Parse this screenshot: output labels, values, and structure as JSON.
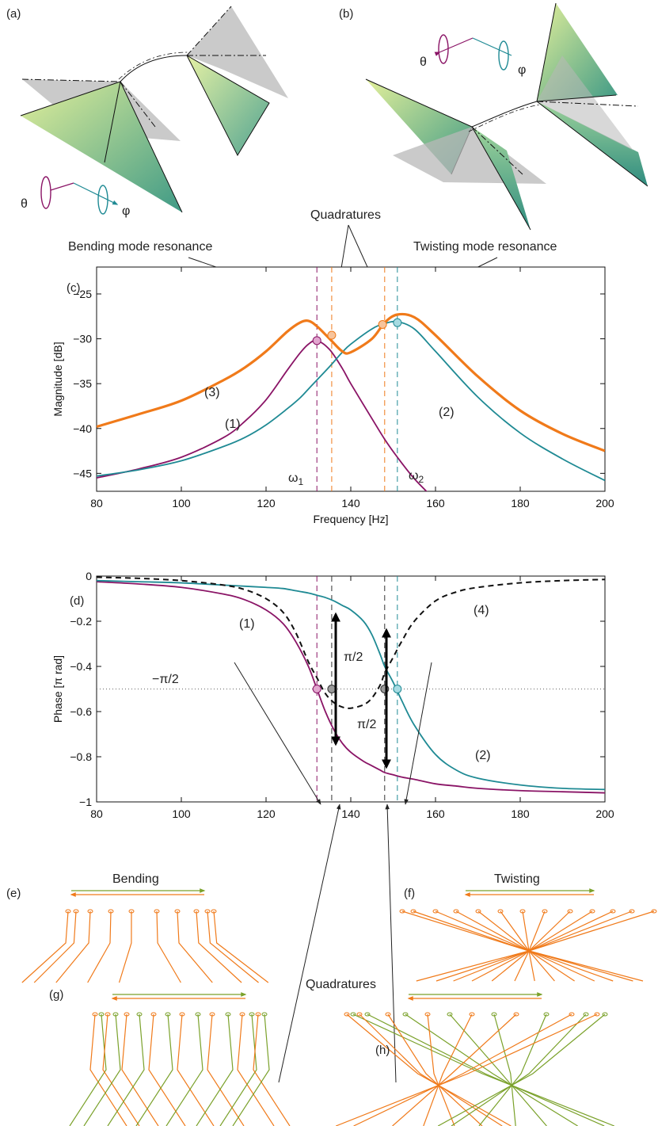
{
  "panel_labels": {
    "a": "(a)",
    "b": "(b)",
    "c": "(c)",
    "d": "(d)",
    "e": "(e)",
    "f": "(f)",
    "g": "(g)",
    "h": "(h)"
  },
  "symbols": {
    "theta": "θ",
    "phi": "φ"
  },
  "annotations": {
    "quadratures_top": "Quadratures",
    "bending_resonance": "Bending mode resonance",
    "twisting_resonance": "Twisting mode resonance",
    "quadratures_bottom": "Quadratures",
    "bending": "Bending",
    "twisting": "Twisting",
    "pi_half_upper": "π/2",
    "pi_half_lower": "π/2",
    "minus_pi_half": "−π/2",
    "omega1": "ω",
    "omega1_sub": "1",
    "omega2": "ω",
    "omega2_sub": "2"
  },
  "colors": {
    "purple": "#8a1466",
    "teal": "#1f8a94",
    "orange": "#f07a1a",
    "green": "#7aa12a",
    "black": "#111111"
  },
  "chart_data": [
    {
      "id": "c",
      "type": "line",
      "xlabel": "Frequency [Hz]",
      "ylabel": "Magnitude [dB]",
      "xlim": [
        80,
        200
      ],
      "ylim": [
        -47,
        -22
      ],
      "xticks": [
        80,
        100,
        120,
        140,
        160,
        180,
        200
      ],
      "yticks": [
        -25,
        -30,
        -35,
        -40,
        -45
      ],
      "ytick_labels": [
        "−25",
        "−30",
        "−35",
        "−40",
        "−45"
      ],
      "x": [
        80,
        90,
        100,
        110,
        115,
        120,
        125,
        128,
        130,
        132,
        135,
        138,
        140,
        145,
        148,
        151,
        155,
        160,
        170,
        180,
        190,
        200
      ],
      "series": [
        {
          "name": "(1)",
          "color": "#8a1466",
          "width": 1.8,
          "values": [
            -45.5,
            -44.5,
            -43.2,
            -41.0,
            -39.2,
            -36.8,
            -33.5,
            -31.6,
            -30.6,
            -30.2,
            -31.2,
            -33.3,
            -35.0,
            -38.9,
            -41.2,
            -43.2,
            -45.6,
            -48.0,
            null,
            null,
            null,
            null
          ]
        },
        {
          "name": "(2)",
          "color": "#1f8a94",
          "width": 1.8,
          "values": [
            -45.3,
            -44.6,
            -43.6,
            -42.0,
            -41.0,
            -39.6,
            -37.8,
            -36.6,
            -35.6,
            -34.6,
            -33.1,
            -31.5,
            -30.6,
            -28.9,
            -28.3,
            -28.1,
            -28.9,
            -31.4,
            -36.5,
            -40.5,
            -43.4,
            -45.8
          ]
        },
        {
          "name": "(3)",
          "color": "#f07a1a",
          "width": 3.2,
          "values": [
            -39.8,
            -38.4,
            -36.9,
            -34.6,
            -33.2,
            -31.4,
            -29.2,
            -28.2,
            -28.0,
            -28.6,
            -30.0,
            -31.4,
            -31.5,
            -30.0,
            -28.2,
            -27.3,
            -27.6,
            -29.6,
            -34.2,
            -38.0,
            -40.6,
            -42.5
          ]
        }
      ],
      "markers": [
        {
          "x": 132,
          "y": -30.2,
          "fill": "#e2a6cf",
          "stroke": "#8a1466"
        },
        {
          "x": 135.5,
          "y": -29.6,
          "fill": "#f7c49c",
          "stroke": "#f07a1a"
        },
        {
          "x": 147.5,
          "y": -28.4,
          "fill": "#f7c49c",
          "stroke": "#f07a1a"
        },
        {
          "x": 151,
          "y": -28.2,
          "fill": "#a6dbe2",
          "stroke": "#1f8a94"
        }
      ],
      "vlines": [
        {
          "x": 132,
          "color": "#8a1466"
        },
        {
          "x": 135.5,
          "color": "#f07a1a"
        },
        {
          "x": 148,
          "color": "#f07a1a"
        },
        {
          "x": 151,
          "color": "#1f8a94"
        }
      ],
      "series_labels": [
        "(1)",
        "(2)",
        "(3)"
      ]
    },
    {
      "id": "d",
      "type": "line",
      "xlabel": "",
      "ylabel": "Phase [π rad]",
      "xlim": [
        80,
        200
      ],
      "ylim": [
        -1,
        0
      ],
      "xticks": [
        80,
        100,
        120,
        140,
        160,
        180,
        200
      ],
      "yticks": [
        0,
        -0.2,
        -0.4,
        -0.6,
        -0.8,
        -1
      ],
      "ytick_labels": [
        "0",
        "−0.2",
        "−0.4",
        "−0.6",
        "−0.8",
        "−1"
      ],
      "x": [
        80,
        90,
        100,
        110,
        115,
        120,
        124,
        127,
        130,
        132,
        134,
        136,
        138,
        140,
        143,
        145,
        147,
        148,
        150,
        152,
        155,
        160,
        165,
        170,
        180,
        190,
        200
      ],
      "series": [
        {
          "name": "(1)",
          "color": "#8a1466",
          "width": 1.8,
          "dash": "",
          "values": [
            -0.025,
            -0.035,
            -0.05,
            -0.08,
            -0.105,
            -0.15,
            -0.21,
            -0.29,
            -0.4,
            -0.5,
            -0.6,
            -0.68,
            -0.74,
            -0.78,
            -0.82,
            -0.84,
            -0.86,
            -0.87,
            -0.88,
            -0.89,
            -0.9,
            -0.92,
            -0.93,
            -0.94,
            -0.95,
            -0.955,
            -0.96
          ]
        },
        {
          "name": "(2)",
          "color": "#1f8a94",
          "width": 1.8,
          "dash": "",
          "values": [
            -0.02,
            -0.025,
            -0.03,
            -0.04,
            -0.045,
            -0.05,
            -0.055,
            -0.065,
            -0.075,
            -0.085,
            -0.095,
            -0.11,
            -0.13,
            -0.15,
            -0.2,
            -0.26,
            -0.35,
            -0.4,
            -0.47,
            -0.55,
            -0.66,
            -0.79,
            -0.86,
            -0.895,
            -0.925,
            -0.94,
            -0.945
          ]
        },
        {
          "name": "(4)",
          "color": "#111111",
          "width": 2,
          "dash": "7,5",
          "values": [
            -0.005,
            -0.01,
            -0.02,
            -0.04,
            -0.06,
            -0.1,
            -0.16,
            -0.25,
            -0.38,
            -0.45,
            -0.52,
            -0.56,
            -0.58,
            -0.585,
            -0.57,
            -0.54,
            -0.48,
            -0.43,
            -0.36,
            -0.29,
            -0.2,
            -0.11,
            -0.07,
            -0.05,
            -0.03,
            -0.02,
            -0.015
          ]
        }
      ],
      "hline": {
        "y": -0.5,
        "color": "#666666"
      },
      "markers": [
        {
          "x": 132,
          "y": -0.5,
          "fill": "#e2a6cf",
          "stroke": "#8a1466"
        },
        {
          "x": 135.5,
          "y": -0.5,
          "fill": "#9a9a9a",
          "stroke": "#333333"
        },
        {
          "x": 148,
          "y": -0.5,
          "fill": "#9a9a9a",
          "stroke": "#333333"
        },
        {
          "x": 151,
          "y": -0.5,
          "fill": "#a6dbe2",
          "stroke": "#1f8a94"
        }
      ],
      "vlines": [
        {
          "x": 132,
          "color": "#8a1466"
        },
        {
          "x": 135.5,
          "color": "#333333"
        },
        {
          "x": 148,
          "color": "#333333"
        },
        {
          "x": 151,
          "color": "#1f8a94"
        }
      ],
      "series_labels": [
        "(1)",
        "(2)",
        "(4)"
      ]
    }
  ]
}
